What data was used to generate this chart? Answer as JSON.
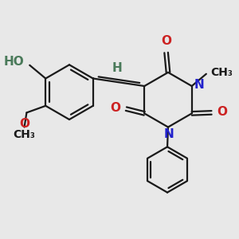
{
  "background_color": "#e8e8e8",
  "bond_color": "#1a1a1a",
  "N_color": "#2222cc",
  "O_color": "#cc2222",
  "H_color": "#4a7a5a",
  "line_width": 1.6,
  "figsize": [
    3.0,
    3.0
  ],
  "dpi": 100,
  "xlim": [
    -3.0,
    2.8
  ],
  "ylim": [
    -2.8,
    2.2
  ]
}
